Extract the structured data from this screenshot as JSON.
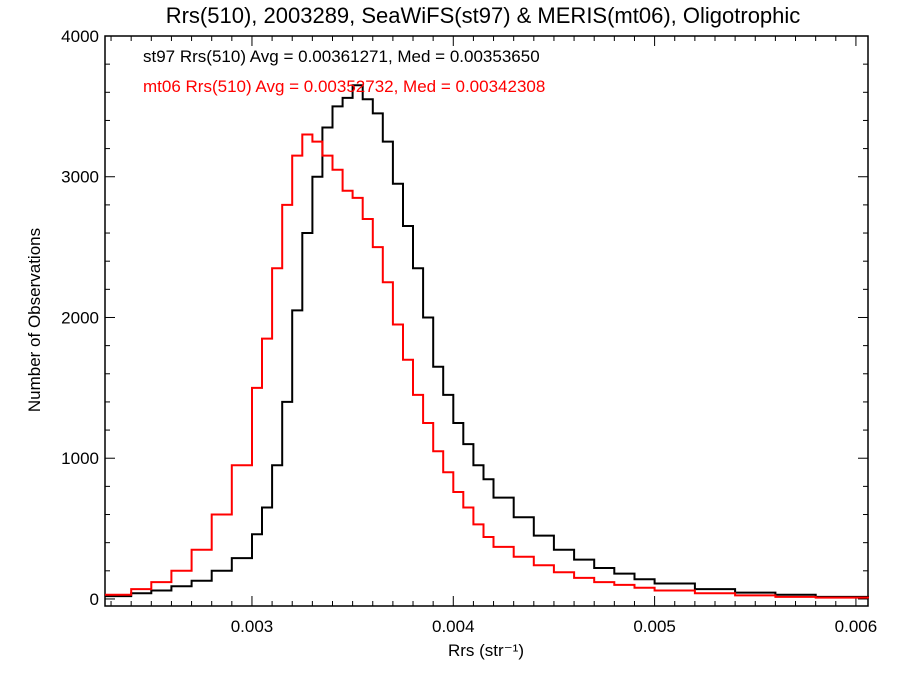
{
  "chart_data": {
    "type": "line",
    "title": "Rrs(510), 2003289, SeaWiFS(st97) & MERIS(mt06), Oligotrophic",
    "xlabel": "Rrs (str⁻¹)",
    "ylabel": "Number of Observations",
    "xlim": [
      0.00227,
      0.00606
    ],
    "ylim": [
      -50,
      4000
    ],
    "xticks": [
      0.003,
      0.004,
      0.005,
      0.006
    ],
    "xtick_labels": [
      "0.003",
      "0.004",
      "0.005",
      "0.006"
    ],
    "yticks": [
      0,
      1000,
      2000,
      3000,
      4000
    ],
    "ytick_labels": [
      "0",
      "1000",
      "2000",
      "3000",
      "4000"
    ],
    "grid": false,
    "annotations": [
      {
        "text": "st97 Rrs(510) Avg = 0.00361271, Med = 0.00353650",
        "color": "#000000"
      },
      {
        "text": "mt06 Rrs(510) Avg = 0.00352732, Med = 0.00342308",
        "color": "#ff0000"
      }
    ],
    "series": [
      {
        "color": "#000000",
        "x": [
          0.00227,
          0.0024,
          0.0025,
          0.0026,
          0.0027,
          0.0028,
          0.0029,
          0.003,
          0.00305,
          0.0031,
          0.00315,
          0.0032,
          0.00325,
          0.0033,
          0.00335,
          0.0034,
          0.00345,
          0.0035,
          0.00355,
          0.0036,
          0.00365,
          0.0037,
          0.00375,
          0.0038,
          0.00385,
          0.0039,
          0.00395,
          0.004,
          0.00405,
          0.0041,
          0.00415,
          0.0042,
          0.0043,
          0.0044,
          0.0045,
          0.0046,
          0.0047,
          0.0048,
          0.0049,
          0.005,
          0.0052,
          0.0054,
          0.0056,
          0.0058,
          0.00606
        ],
        "y": [
          20,
          40,
          60,
          90,
          130,
          200,
          290,
          460,
          650,
          950,
          1400,
          2050,
          2600,
          3000,
          3350,
          3500,
          3560,
          3650,
          3550,
          3450,
          3250,
          2950,
          2650,
          2350,
          2000,
          1650,
          1450,
          1250,
          1100,
          950,
          850,
          720,
          580,
          450,
          350,
          280,
          220,
          180,
          140,
          110,
          70,
          45,
          30,
          15,
          5
        ]
      },
      {
        "color": "#ff0000",
        "x": [
          0.00227,
          0.0024,
          0.0025,
          0.0026,
          0.0027,
          0.0028,
          0.0029,
          0.003,
          0.00305,
          0.0031,
          0.00315,
          0.0032,
          0.00325,
          0.0033,
          0.00335,
          0.0034,
          0.00345,
          0.0035,
          0.00355,
          0.0036,
          0.00365,
          0.0037,
          0.00375,
          0.0038,
          0.00385,
          0.0039,
          0.00395,
          0.004,
          0.00405,
          0.0041,
          0.00415,
          0.0042,
          0.0043,
          0.0044,
          0.0045,
          0.0046,
          0.0047,
          0.0048,
          0.0049,
          0.005,
          0.0052,
          0.0054,
          0.0056,
          0.0058,
          0.00606
        ],
        "y": [
          30,
          70,
          120,
          200,
          350,
          600,
          950,
          1500,
          1850,
          2350,
          2800,
          3150,
          3300,
          3250,
          3150,
          3050,
          2900,
          2850,
          2700,
          2500,
          2250,
          1950,
          1700,
          1450,
          1250,
          1050,
          900,
          760,
          650,
          530,
          440,
          370,
          300,
          240,
          190,
          150,
          120,
          100,
          80,
          60,
          40,
          25,
          15,
          10,
          5
        ]
      }
    ]
  }
}
